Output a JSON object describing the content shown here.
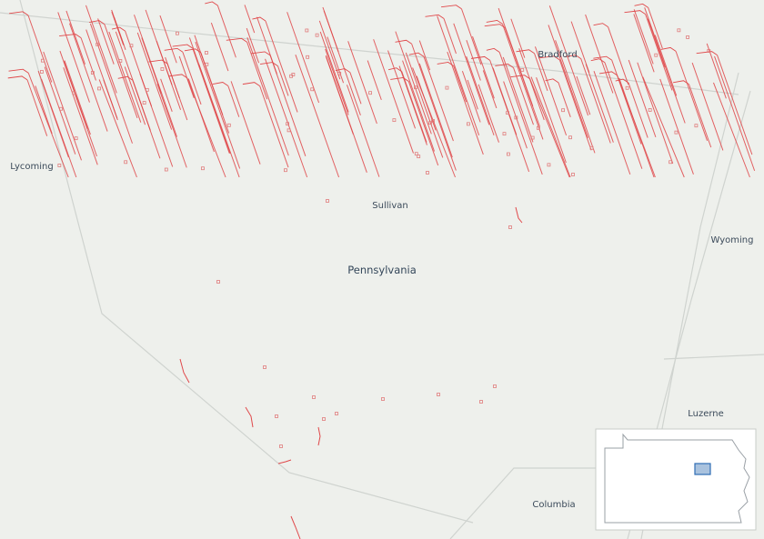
{
  "places": [
    {
      "name": "Bradford"
    },
    {
      "name": "Lycoming"
    },
    {
      "name": "Sullivan"
    },
    {
      "name": "Pennsylvania"
    },
    {
      "name": "Wyoming"
    },
    {
      "name": "Luzerne"
    },
    {
      "name": "Columbia"
    }
  ]
}
